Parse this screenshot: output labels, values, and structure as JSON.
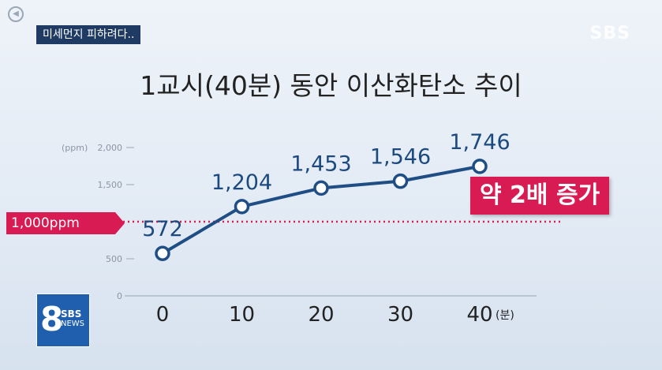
{
  "header": {
    "caption_tag": "미세먼지 피하려다..",
    "corner_logo": "SBS",
    "speaker_icon": "speaker-icon"
  },
  "chart_data": {
    "type": "line",
    "title": "1교시(40분) 동안 이산화탄소 추이",
    "x": [
      0,
      10,
      20,
      30,
      40
    ],
    "x_tick_labels": [
      "0",
      "10",
      "20",
      "30",
      "40"
    ],
    "x_unit": "(분)",
    "y_unit": "(ppm)",
    "y_ticks": [
      0,
      500,
      1500,
      2000
    ],
    "y_tick_labels": [
      "0",
      "500",
      "1,500",
      "2,000"
    ],
    "ylim": [
      0,
      2000
    ],
    "series": [
      {
        "values": [
          572,
          1204,
          1453,
          1546,
          1746
        ],
        "labels": [
          "572",
          "1,204",
          "1,453",
          "1,546",
          "1,746"
        ]
      }
    ],
    "threshold": {
      "value": 1000,
      "label": "1,000ppm"
    },
    "annotation": "약 2배 증가",
    "colors": {
      "line": "#1f4e85",
      "threshold": "#d81b52",
      "axis": "#9aa7b5"
    }
  },
  "news_logo": {
    "number": "8",
    "brand": "SBS",
    "sub": "NEWS"
  }
}
